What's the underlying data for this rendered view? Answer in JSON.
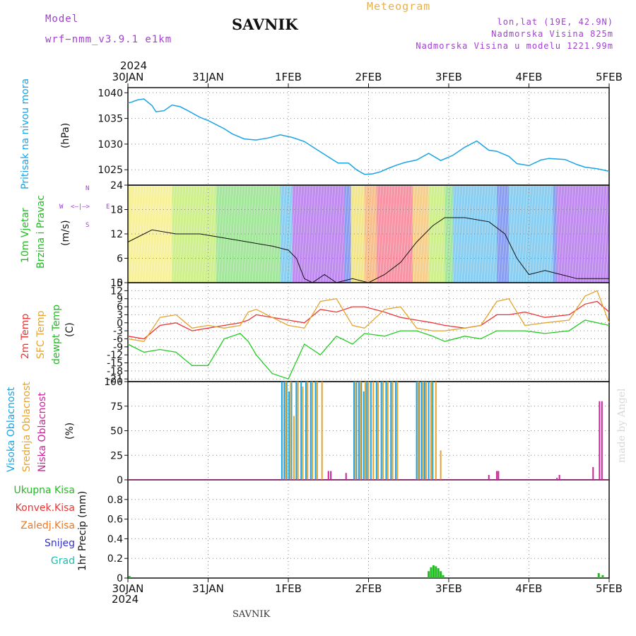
{
  "header": {
    "model_label": "Model",
    "model_name": "wrf−nmm_v3.9.1  e1km",
    "station": "SAVNIK",
    "product": "Meteogram",
    "coords": "lon,lat (19E, 42.9N)",
    "elevation": "Nadmorska Visina 825m",
    "model_elevation": "Nadmorska Visina u modelu 1221.99m",
    "footer_station": "SAVNIK",
    "watermark": "made by Angel"
  },
  "colors": {
    "pressure": "#1aa3e6",
    "temp2m": "#ee3333",
    "sfc": "#e6a32e",
    "dewpt": "#22cc22",
    "high_cloud": "#1aa3e6",
    "mid_cloud": "#e6a32e",
    "low_cloud": "#cc2299",
    "purple_text": "#a040d0",
    "rain_total": "#22bb22",
    "rain_conv": "#ee3333",
    "rain_freezing": "#ee7722",
    "snow": "#3333cc",
    "hail": "#22bbaa"
  },
  "time_axis": {
    "year": "2024",
    "labels": [
      "30JAN",
      "31JAN",
      "1FEB",
      "2FEB",
      "3FEB",
      "4FEB",
      "5FEB"
    ]
  },
  "panel_labels": {
    "pressure": [
      "Pritisak na nivou mora",
      "(hPa)"
    ],
    "wind": [
      "10m Vjetar",
      "Brzina i Pravac",
      "(m/s)"
    ],
    "wind_compass": [
      "W",
      "<—|—>",
      "E",
      "N",
      "S"
    ],
    "temp": [
      "2m Temp",
      "SFC Temp",
      "dewpt Temp",
      "(C)"
    ],
    "cloud": [
      "Visoka Oblacnost",
      "Srednja Oblacnost",
      "Niska Oblacnost",
      "(%)"
    ],
    "precip": [
      "Ukupna Kisa",
      "Konvek.Kisa",
      "Zaledj.Kisa",
      "Snijeg",
      "Grad",
      "1hr Precip (mm)"
    ]
  },
  "chart_data": [
    {
      "type": "line",
      "ylabel": "(hPa)",
      "ylim": [
        1022,
        1041
      ],
      "yticks": [
        1025,
        1030,
        1035,
        1040
      ],
      "series": [
        {
          "name": "Pritisak na nivou mora",
          "x": [
            0,
            0.05,
            0.12,
            0.2,
            0.3,
            0.35,
            0.45,
            0.55,
            0.65,
            0.75,
            0.9,
            1.0,
            1.1,
            1.2,
            1.3,
            1.45,
            1.6,
            1.75,
            1.9,
            2.05,
            2.2,
            2.35,
            2.5,
            2.62,
            2.75,
            2.85,
            2.95,
            3.05,
            3.15,
            3.25,
            3.35,
            3.45,
            3.6,
            3.75,
            3.9,
            4.05,
            4.2,
            4.35,
            4.5,
            4.6,
            4.75,
            4.85,
            5.0,
            5.15,
            5.25,
            5.45,
            5.6,
            5.7,
            5.85,
            6.0
          ],
          "y": [
            1038,
            1038.2,
            1038.6,
            1038.8,
            1037.5,
            1036.3,
            1036.5,
            1037.6,
            1037.3,
            1036.5,
            1035.2,
            1034.6,
            1033.8,
            1033,
            1032,
            1031,
            1030.8,
            1031.2,
            1031.8,
            1031.3,
            1030.5,
            1029,
            1027.5,
            1026.3,
            1026.3,
            1025,
            1024.1,
            1024.2,
            1024.6,
            1025.3,
            1025.9,
            1026.4,
            1026.9,
            1028.2,
            1026.8,
            1027.8,
            1029.4,
            1030.6,
            1028.8,
            1028.6,
            1027.6,
            1026.2,
            1025.8,
            1026.9,
            1027.2,
            1027,
            1026,
            1025.5,
            1025.2,
            1024.7
          ]
        }
      ]
    },
    {
      "type": "scatter",
      "ylabel": "(m/s)",
      "ylim": [
        0,
        24
      ],
      "yticks": [
        0,
        6,
        12,
        18,
        24
      ],
      "series": [
        {
          "name": "10m Vjetar",
          "x": [
            0,
            0.3,
            0.6,
            0.9,
            1.2,
            1.5,
            1.8,
            2.0,
            2.1,
            2.2,
            2.3,
            2.45,
            2.6,
            2.8,
            3.0,
            3.2,
            3.4,
            3.6,
            3.8,
            3.95,
            4.2,
            4.5,
            4.7,
            4.85,
            5.0,
            5.2,
            5.4,
            5.6,
            5.8,
            6.0
          ],
          "y": [
            10,
            13,
            12,
            12,
            11,
            10,
            9,
            8,
            6,
            1,
            0,
            2,
            0,
            1,
            0,
            2,
            5,
            10,
            14,
            16,
            16,
            15,
            12,
            6,
            2,
            3,
            2,
            1,
            1,
            1
          ]
        }
      ]
    },
    {
      "type": "line",
      "ylabel": "(C)",
      "ylim": [
        -22,
        15
      ],
      "yticks": [
        15,
        12,
        9,
        6,
        3,
        0,
        -3,
        -6,
        -9,
        -12,
        -15,
        -18,
        -21
      ],
      "series": [
        {
          "name": "2m Temp",
          "x": [
            0,
            0.2,
            0.4,
            0.6,
            0.8,
            1.0,
            1.2,
            1.4,
            1.5,
            1.6,
            1.8,
            2.0,
            2.2,
            2.4,
            2.6,
            2.8,
            2.95,
            3.2,
            3.4,
            3.6,
            3.8,
            3.95,
            4.2,
            4.4,
            4.6,
            4.75,
            4.95,
            5.2,
            5.5,
            5.7,
            5.85,
            6.0
          ],
          "y": [
            -5,
            -6,
            -1,
            0,
            -3,
            -2,
            -1,
            0,
            1,
            3,
            2,
            1,
            0,
            5,
            4,
            6,
            6,
            4,
            2,
            1,
            0,
            -1,
            -2,
            -1,
            3,
            3,
            4,
            2,
            3,
            7,
            8,
            4
          ]
        },
        {
          "name": "SFC Temp",
          "x": [
            0,
            0.2,
            0.4,
            0.6,
            0.8,
            1.0,
            1.2,
            1.4,
            1.5,
            1.6,
            1.8,
            2.0,
            2.2,
            2.4,
            2.6,
            2.8,
            2.95,
            3.2,
            3.4,
            3.6,
            3.8,
            3.95,
            4.2,
            4.4,
            4.6,
            4.75,
            4.95,
            5.2,
            5.5,
            5.7,
            5.85,
            6.0
          ],
          "y": [
            -6,
            -7,
            2,
            3,
            -2,
            -1,
            -2,
            -1,
            4,
            5,
            2,
            -1,
            -2,
            8,
            9,
            -1,
            -2,
            5,
            6,
            -2,
            -3,
            -3,
            -2,
            -1,
            8,
            9,
            -1,
            0,
            1,
            10,
            12,
            0
          ]
        },
        {
          "name": "dewpt Temp",
          "x": [
            0,
            0.2,
            0.4,
            0.6,
            0.8,
            1.0,
            1.2,
            1.4,
            1.5,
            1.6,
            1.8,
            2.0,
            2.2,
            2.4,
            2.6,
            2.8,
            2.95,
            3.2,
            3.4,
            3.6,
            3.8,
            3.95,
            4.2,
            4.4,
            4.6,
            4.75,
            4.95,
            5.2,
            5.5,
            5.7,
            5.85,
            6.0
          ],
          "y": [
            -8,
            -11,
            -10,
            -11,
            -16,
            -16,
            -6,
            -4,
            -7,
            -12,
            -19,
            -21,
            -8,
            -12,
            -5,
            -8,
            -4,
            -5,
            -3,
            -3,
            -5,
            -7,
            -5,
            -6,
            -3,
            -3,
            -3,
            -4,
            -3,
            1,
            0,
            -1
          ]
        }
      ]
    },
    {
      "type": "bar",
      "ylabel": "(%)",
      "ylim": [
        0,
        100
      ],
      "yticks": [
        0,
        25,
        50,
        75,
        100
      ],
      "series": [
        {
          "name": "Visoka Oblacnost",
          "x": [
            1.92,
            1.95,
            1.98,
            2.01,
            2.04,
            2.1,
            2.16,
            2.22,
            2.28,
            2.34,
            2.82,
            2.85,
            2.88,
            2.91,
            2.94,
            2.98,
            3.03,
            3.1,
            3.16,
            3.22,
            3.28,
            3.34,
            3.6,
            3.63,
            3.66,
            3.7,
            3.75,
            3.8
          ],
          "y": [
            100,
            100,
            100,
            90,
            100,
            100,
            100,
            100,
            100,
            100,
            100,
            100,
            100,
            100,
            90,
            100,
            100,
            100,
            100,
            100,
            100,
            100,
            100,
            100,
            100,
            100,
            100,
            100
          ]
        },
        {
          "name": "Srednja Oblacnost",
          "x": [
            1.97,
            2.03,
            2.07,
            2.12,
            2.18,
            2.24,
            2.3,
            2.36,
            2.42,
            2.84,
            2.9,
            2.96,
            3.0,
            3.06,
            3.12,
            3.18,
            3.24,
            3.3,
            3.36,
            3.62,
            3.68,
            3.72,
            3.78,
            3.84,
            3.9
          ],
          "y": [
            100,
            100,
            65,
            100,
            95,
            100,
            100,
            100,
            100,
            100,
            100,
            100,
            100,
            100,
            100,
            100,
            100,
            100,
            100,
            100,
            100,
            100,
            100,
            100,
            30
          ]
        },
        {
          "name": "Niska Oblacnost",
          "x": [
            2.5,
            2.53,
            2.72,
            4.5,
            4.6,
            4.62,
            5.35,
            5.38,
            5.8,
            5.88,
            5.91
          ],
          "y": [
            9,
            9,
            7,
            5,
            9,
            9,
            2,
            5,
            13,
            80,
            80
          ]
        }
      ]
    },
    {
      "type": "bar",
      "ylabel": "1hr Precip (mm)",
      "ylim": [
        0,
        1
      ],
      "yticks": [
        0,
        0.2,
        0.4,
        0.6,
        0.8
      ],
      "series": [
        {
          "name": "Ukupna Kisa",
          "x": [
            0.02,
            3.75,
            3.78,
            3.81,
            3.84,
            3.87,
            3.9,
            3.93,
            5.87,
            5.92
          ],
          "y": [
            0.02,
            0.07,
            0.11,
            0.13,
            0.12,
            0.1,
            0.07,
            0.03,
            0.05,
            0.03
          ]
        },
        {
          "name": "Konvek.Kisa",
          "x": [],
          "y": []
        },
        {
          "name": "Zaledj.Kisa",
          "x": [],
          "y": []
        },
        {
          "name": "Snijeg",
          "x": [],
          "y": []
        },
        {
          "name": "Grad",
          "x": [],
          "y": []
        }
      ]
    }
  ]
}
